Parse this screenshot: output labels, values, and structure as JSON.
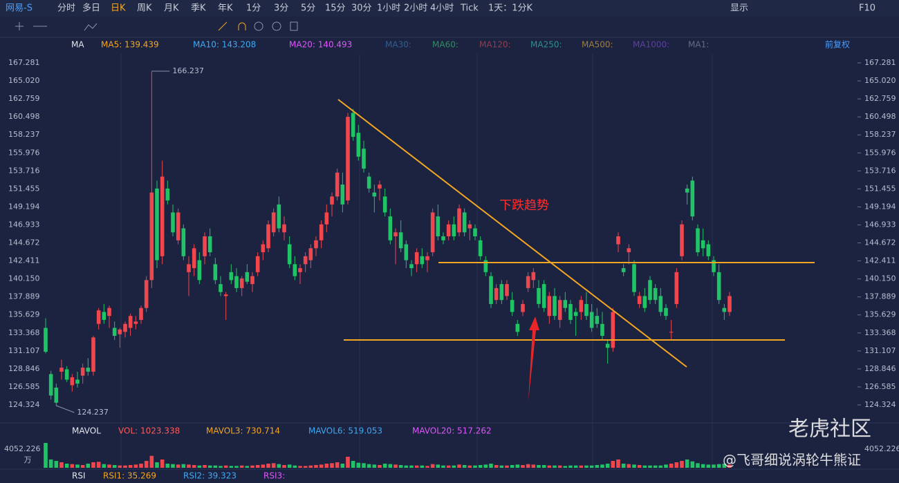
{
  "toolbar": {
    "symbol": "网易-S",
    "periods": [
      "分时",
      "多日",
      "日K",
      "周K",
      "月K",
      "季K",
      "年K",
      "1分",
      "3分",
      "5分",
      "15分",
      "30分",
      "1小时",
      "2小时",
      "4小时",
      "Tick"
    ],
    "active": "日K",
    "range": "1天：1分K",
    "display": "显示",
    "f10": "F10"
  },
  "ma_legend": {
    "name": "MA",
    "items": [
      "MA5: 139.439",
      "MA10: 143.208",
      "MA20: 140.493",
      "MA30:",
      "MA60:",
      "MA120:",
      "MA250:",
      "MA500:",
      "MA1000:",
      "MA1:"
    ],
    "colors": [
      "#f5a623",
      "#3fa9f5",
      "#e056fd",
      "#2f5f8f",
      "#2f8f5f",
      "#8f3f4f",
      "#2f8f8f",
      "#9f7f3f",
      "#5f3f9f",
      "#5f6f7f"
    ],
    "adjust": "前复权"
  },
  "chart_data": {
    "type": "candlestick",
    "up_color": "#f0474f",
    "down_color": "#20c467",
    "ylim": [
      123.11,
      168.41
    ],
    "yticks": [
      167.281,
      {
        "value": 165.02,
        "label": "165.020"
      },
      162.759,
      160.498,
      158.237,
      155.976,
      153.716,
      151.455,
      149.194,
      146.933,
      144.672,
      142.411,
      {
        "value": 140.15,
        "label": "140.150"
      },
      137.889,
      135.629,
      133.368,
      131.107,
      128.846,
      126.585,
      124.324
    ],
    "max_label": 166.237,
    "min_label": 124.237,
    "annotation": "下跌趋势",
    "ohlc": [
      [
        134.0,
        135.2,
        130.8,
        131.0
      ],
      [
        128.2,
        128.6,
        125.0,
        125.5
      ],
      [
        126.5,
        127.0,
        124.2,
        124.6
      ],
      [
        128.5,
        130.0,
        127.5,
        129.0
      ],
      [
        128.8,
        129.2,
        127.2,
        127.5
      ],
      [
        126.8,
        128.2,
        126.0,
        127.8
      ],
      [
        127.5,
        128.5,
        126.5,
        127.0
      ],
      [
        128.0,
        129.5,
        127.0,
        129.0
      ],
      [
        129.0,
        130.2,
        128.0,
        128.5
      ],
      [
        128.5,
        133.0,
        128.0,
        132.8
      ],
      [
        134.5,
        136.5,
        133.8,
        136.2
      ],
      [
        136.0,
        137.0,
        134.5,
        135.0
      ],
      [
        135.5,
        136.8,
        134.0,
        136.5
      ],
      [
        134.0,
        134.8,
        132.5,
        133.0
      ],
      [
        133.2,
        134.0,
        131.5,
        133.8
      ],
      [
        133.5,
        134.8,
        132.8,
        134.5
      ],
      [
        134.0,
        135.8,
        133.0,
        135.5
      ],
      [
        134.5,
        135.5,
        133.8,
        134.8
      ],
      [
        135.0,
        136.8,
        134.5,
        136.5
      ],
      [
        136.5,
        140.5,
        136.0,
        140.0
      ],
      [
        140.0,
        166.2,
        139.0,
        151.0
      ],
      [
        151.5,
        152.5,
        141.5,
        142.5
      ],
      [
        143.0,
        155.0,
        142.0,
        153.0
      ],
      [
        151.5,
        152.5,
        149.5,
        150.0
      ],
      [
        148.5,
        149.5,
        145.5,
        146.0
      ],
      [
        145.0,
        149.0,
        144.5,
        148.5
      ],
      [
        146.5,
        147.0,
        142.5,
        143.0
      ],
      [
        141.0,
        143.0,
        138.0,
        142.0
      ],
      [
        141.5,
        144.5,
        140.5,
        144.0
      ],
      [
        142.5,
        143.5,
        139.5,
        140.0
      ],
      [
        143.0,
        146.0,
        142.0,
        145.5
      ],
      [
        145.5,
        146.5,
        143.0,
        143.5
      ],
      [
        142.0,
        142.8,
        139.5,
        140.0
      ],
      [
        139.5,
        140.5,
        138.0,
        138.5
      ],
      [
        138.0,
        138.5,
        135.0,
        138.2
      ],
      [
        141.0,
        142.0,
        139.5,
        140.0
      ],
      [
        140.5,
        141.5,
        138.5,
        139.0
      ],
      [
        139.0,
        140.5,
        138.0,
        140.2
      ],
      [
        141.0,
        142.0,
        139.5,
        139.8
      ],
      [
        139.5,
        141.0,
        138.5,
        140.5
      ],
      [
        141.0,
        143.5,
        140.5,
        143.0
      ],
      [
        143.5,
        145.0,
        142.5,
        144.5
      ],
      [
        144.0,
        147.5,
        143.5,
        147.0
      ],
      [
        146.0,
        149.0,
        145.5,
        148.5
      ],
      [
        149.5,
        150.5,
        146.0,
        146.5
      ],
      [
        146.0,
        148.0,
        145.0,
        147.0
      ],
      [
        144.5,
        145.5,
        141.5,
        142.0
      ],
      [
        142.0,
        143.0,
        140.0,
        140.5
      ],
      [
        141.0,
        142.0,
        139.5,
        141.5
      ],
      [
        142.0,
        143.5,
        141.0,
        143.0
      ],
      [
        142.5,
        144.5,
        141.5,
        144.0
      ],
      [
        144.0,
        145.5,
        143.0,
        145.0
      ],
      [
        145.0,
        147.5,
        144.0,
        147.0
      ],
      [
        147.0,
        149.5,
        146.0,
        148.5
      ],
      [
        149.5,
        151.0,
        148.0,
        150.5
      ],
      [
        150.5,
        154.0,
        150.0,
        153.5
      ],
      [
        152.0,
        153.5,
        148.5,
        149.5
      ],
      [
        150.0,
        161.0,
        149.5,
        160.5
      ],
      [
        161.0,
        161.5,
        157.5,
        158.0
      ],
      [
        158.5,
        159.5,
        155.0,
        155.5
      ],
      [
        156.5,
        157.5,
        153.5,
        154.0
      ],
      [
        153.0,
        153.5,
        151.0,
        151.5
      ],
      [
        151.0,
        152.0,
        148.5,
        150.5
      ],
      [
        151.5,
        152.5,
        150.0,
        152.0
      ],
      [
        150.5,
        151.5,
        148.0,
        148.5
      ],
      [
        148.0,
        149.0,
        144.5,
        145.0
      ],
      [
        145.5,
        146.5,
        142.0,
        146.0
      ],
      [
        146.0,
        147.5,
        143.5,
        144.0
      ],
      [
        144.5,
        145.0,
        141.5,
        142.5
      ],
      [
        142.0,
        142.5,
        140.5,
        141.5
      ],
      [
        142.0,
        144.0,
        141.0,
        143.5
      ],
      [
        143.0,
        144.0,
        141.5,
        142.0
      ],
      [
        142.5,
        143.5,
        141.0,
        143.0
      ],
      [
        143.5,
        149.0,
        143.0,
        148.5
      ],
      [
        148.0,
        149.5,
        145.0,
        145.5
      ],
      [
        145.5,
        146.0,
        144.5,
        145.0
      ],
      [
        145.5,
        147.5,
        145.0,
        147.0
      ],
      [
        147.0,
        148.0,
        145.0,
        145.5
      ],
      [
        146.0,
        149.5,
        145.5,
        149.0
      ],
      [
        148.5,
        149.0,
        145.5,
        146.0
      ],
      [
        146.5,
        147.5,
        145.0,
        147.0
      ],
      [
        146.5,
        147.0,
        145.0,
        145.5
      ],
      [
        145.0,
        145.5,
        142.5,
        143.0
      ],
      [
        142.5,
        143.0,
        140.5,
        141.0
      ],
      [
        140.5,
        141.0,
        136.5,
        137.0
      ],
      [
        137.5,
        139.5,
        137.0,
        139.0
      ],
      [
        139.5,
        140.0,
        137.0,
        137.5
      ],
      [
        138.0,
        140.0,
        137.5,
        139.5
      ],
      [
        137.5,
        138.5,
        135.5,
        136.0
      ],
      [
        134.5,
        135.0,
        133.0,
        133.5
      ],
      [
        136.0,
        137.5,
        135.5,
        137.0
      ],
      [
        139.0,
        141.0,
        138.5,
        140.5
      ],
      [
        140.0,
        141.5,
        139.0,
        141.0
      ],
      [
        139.0,
        140.0,
        136.5,
        137.0
      ],
      [
        139.5,
        140.0,
        136.0,
        136.5
      ],
      [
        135.5,
        138.5,
        134.5,
        138.0
      ],
      [
        138.0,
        139.0,
        135.0,
        135.5
      ],
      [
        135.0,
        138.0,
        134.0,
        137.5
      ],
      [
        137.5,
        138.5,
        136.0,
        136.5
      ],
      [
        137.0,
        137.5,
        134.5,
        135.0
      ],
      [
        136.0,
        136.5,
        133.0,
        135.5
      ],
      [
        136.0,
        138.0,
        135.0,
        137.5
      ],
      [
        137.0,
        138.5,
        135.0,
        135.5
      ],
      [
        136.0,
        137.0,
        133.5,
        134.0
      ],
      [
        135.5,
        136.5,
        134.0,
        134.5
      ],
      [
        134.5,
        136.0,
        132.5,
        133.0
      ],
      [
        132.0,
        132.5,
        129.5,
        131.5
      ],
      [
        131.5,
        136.5,
        131.0,
        136.0
      ],
      [
        144.5,
        146.0,
        143.5,
        145.5
      ],
      [
        141.5,
        142.0,
        140.5,
        141.0
      ],
      [
        143.5,
        144.5,
        142.0,
        144.0
      ],
      [
        142.0,
        142.5,
        138.0,
        138.5
      ],
      [
        137.0,
        138.5,
        136.5,
        138.0
      ],
      [
        138.0,
        139.0,
        136.0,
        136.5
      ],
      [
        140.0,
        140.5,
        137.0,
        137.5
      ],
      [
        139.0,
        139.5,
        137.0,
        137.5
      ],
      [
        138.0,
        139.0,
        135.5,
        136.0
      ],
      [
        136.5,
        137.0,
        135.0,
        135.5
      ],
      [
        133.5,
        135.0,
        132.5,
        133.5
      ],
      [
        137.0,
        141.5,
        136.5,
        141.0
      ],
      [
        143.0,
        147.5,
        142.5,
        147.0
      ],
      [
        151.5,
        152.0,
        149.5,
        151.0
      ],
      [
        152.5,
        153.0,
        147.5,
        148.0
      ],
      [
        146.5,
        147.0,
        143.0,
        143.5
      ],
      [
        145.0,
        146.5,
        143.0,
        144.0
      ],
      [
        144.5,
        145.0,
        142.5,
        143.0
      ],
      [
        142.5,
        143.0,
        140.5,
        141.0
      ],
      [
        141.0,
        142.0,
        137.0,
        137.5
      ],
      [
        136.5,
        137.0,
        135.0,
        136.0
      ],
      [
        136.0,
        138.5,
        135.5,
        138.0
      ]
    ],
    "volume": {
      "ylim": [
        0,
        6000
      ],
      "yticks": [
        {
          "value": 4052.226,
          "label": "4052.226"
        }
      ],
      "unit": "万",
      "values": [
        5400,
        1800,
        1500,
        1200,
        900,
        800,
        700,
        600,
        900,
        1200,
        1300,
        800,
        700,
        600,
        500,
        500,
        600,
        700,
        900,
        1500,
        2600,
        1200,
        1800,
        900,
        800,
        700,
        800,
        700,
        600,
        500,
        600,
        500,
        500,
        400,
        500,
        400,
        400,
        500,
        400,
        500,
        600,
        700,
        900,
        1000,
        800,
        600,
        700,
        500,
        400,
        400,
        500,
        600,
        700,
        900,
        1000,
        1200,
        900,
        2400,
        1500,
        1100,
        1000,
        800,
        700,
        600,
        900,
        800,
        700,
        600,
        500,
        500,
        500,
        500,
        400,
        800,
        700,
        500,
        500,
        500,
        700,
        600,
        500,
        500,
        600,
        700,
        900,
        600,
        500,
        500,
        600,
        700,
        600,
        800,
        700,
        600,
        600,
        500,
        500,
        500,
        400,
        500,
        500,
        500,
        500,
        500,
        600,
        700,
        900,
        1500,
        1800,
        900,
        800,
        700,
        600,
        500,
        500,
        500,
        500,
        700,
        900,
        1200,
        1500,
        1800,
        1400,
        1000,
        800,
        700,
        700,
        800,
        900,
        700
      ]
    }
  },
  "vol_legend": {
    "name": "MAVOL",
    "items": [
      "VOL: 1023.338",
      "MAVOL3: 730.714",
      "MAVOL6: 519.053",
      "MAVOL20: 517.262"
    ],
    "colors": [
      "#ff5a5a",
      "#f5a623",
      "#3fa9f5",
      "#e056fd"
    ]
  },
  "rsi_legend": {
    "name": "RSI",
    "items": [
      "RSI1: 35.269",
      "RSI2: 39.323",
      "RSI3:"
    ],
    "colors": [
      "#f5a623",
      "#3fa9f5",
      "#e056fd"
    ]
  },
  "watermark": {
    "brand": "老虎社区",
    "author": "@飞哥细说涡轮牛熊证"
  }
}
